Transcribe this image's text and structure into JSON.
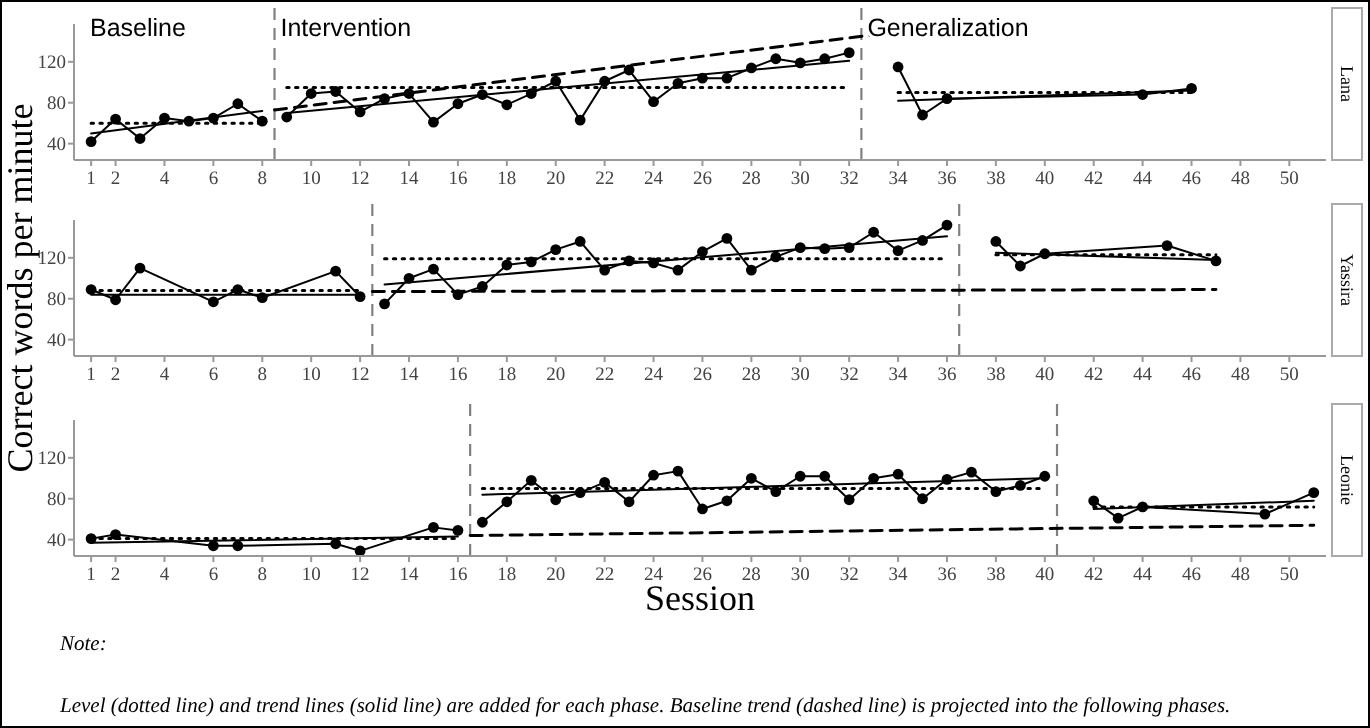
{
  "chart_data": [
    {
      "type": "line",
      "y2label": "Lana",
      "xlim": [
        0.3,
        51.5
      ],
      "ylim": [
        24,
        157
      ],
      "xticks": [
        1,
        2,
        4,
        6,
        8,
        10,
        12,
        14,
        16,
        18,
        20,
        22,
        24,
        26,
        28,
        30,
        32,
        34,
        36,
        38,
        40,
        42,
        44,
        46,
        48,
        50
      ],
      "yticks": [
        40,
        80,
        120
      ],
      "annotations": [
        "Baseline",
        "Intervention",
        "Generalization"
      ],
      "ref_lines": [
        {
          "axis": "x",
          "value": 8.5,
          "color": "#808080",
          "line_style": "dashed"
        },
        {
          "axis": "x",
          "value": 32.5,
          "color": "#808080",
          "line_style": "dashed"
        }
      ],
      "series": [
        {
          "type": "line",
          "x": [
            1,
            2,
            3,
            4,
            5,
            6,
            7,
            8
          ],
          "values": [
            42,
            64,
            45,
            65,
            62,
            65,
            79,
            62
          ],
          "color": "#000000",
          "marker": "circle",
          "line_style": "solid"
        },
        {
          "type": "line",
          "x": [
            9,
            10,
            11,
            12,
            13,
            14,
            15,
            16,
            17,
            18,
            19,
            20,
            21,
            22,
            23,
            24,
            25,
            26,
            27,
            28,
            29,
            30,
            31,
            32
          ],
          "values": [
            66,
            89,
            91,
            71,
            84,
            89,
            61,
            79,
            88,
            78,
            89,
            101,
            63,
            101,
            112,
            81,
            99,
            104,
            104,
            114,
            123,
            119,
            123,
            129
          ],
          "color": "#000000",
          "marker": "circle",
          "line_style": "solid"
        },
        {
          "type": "line",
          "x": [
            34,
            35,
            36,
            44,
            46
          ],
          "values": [
            115,
            68,
            84,
            88,
            94
          ],
          "color": "#000000",
          "marker": "circle",
          "line_style": "solid"
        },
        {
          "type": "line",
          "x": [
            1,
            8
          ],
          "values": [
            60,
            60
          ],
          "color": "#000000",
          "marker": "none",
          "line_style": "dotted"
        },
        {
          "type": "line",
          "x": [
            1,
            8
          ],
          "values": [
            50,
            72
          ],
          "color": "#000000",
          "marker": "none",
          "line_style": "solid"
        },
        {
          "type": "line",
          "x": [
            9,
            32
          ],
          "values": [
            95,
            95
          ],
          "color": "#000000",
          "marker": "none",
          "line_style": "dotted"
        },
        {
          "type": "line",
          "x": [
            9,
            32
          ],
          "values": [
            70,
            121
          ],
          "color": "#000000",
          "marker": "none",
          "line_style": "solid"
        },
        {
          "type": "line",
          "x": [
            34,
            46
          ],
          "values": [
            90,
            90
          ],
          "color": "#000000",
          "marker": "none",
          "line_style": "dotted"
        },
        {
          "type": "line",
          "x": [
            34,
            46
          ],
          "values": [
            82,
            92
          ],
          "color": "#000000",
          "marker": "none",
          "line_style": "solid"
        },
        {
          "type": "line",
          "x": [
            8.5,
            33.5
          ],
          "values": [
            73,
            148
          ],
          "color": "#000000",
          "marker": "none",
          "line_style": "dashed"
        }
      ]
    },
    {
      "type": "line",
      "y2label": "Yassira",
      "ylabel": "Correct words per minute",
      "xlim": [
        0.3,
        51.5
      ],
      "ylim": [
        24,
        157
      ],
      "xticks": [
        1,
        2,
        4,
        6,
        8,
        10,
        12,
        14,
        16,
        18,
        20,
        22,
        24,
        26,
        28,
        30,
        32,
        34,
        36,
        38,
        40,
        42,
        44,
        46,
        48,
        50
      ],
      "yticks": [
        40,
        80,
        120
      ],
      "ref_lines": [
        {
          "axis": "x",
          "value": 12.5,
          "color": "#808080",
          "line_style": "dashed"
        },
        {
          "axis": "x",
          "value": 36.5,
          "color": "#808080",
          "line_style": "dashed"
        }
      ],
      "series": [
        {
          "type": "line",
          "x": [
            1,
            2,
            3,
            6,
            7,
            8,
            11,
            12
          ],
          "values": [
            89,
            79,
            110,
            77,
            89,
            81,
            107,
            82
          ],
          "color": "#000000",
          "marker": "circle",
          "line_style": "solid"
        },
        {
          "type": "line",
          "x": [
            13,
            14,
            15,
            16,
            17,
            18,
            19,
            20,
            21,
            22,
            23,
            24,
            25,
            26,
            27,
            28,
            29,
            30,
            31,
            32,
            33,
            34,
            35,
            36
          ],
          "values": [
            75,
            100,
            109,
            84,
            92,
            113,
            116,
            128,
            136,
            108,
            117,
            115,
            108,
            126,
            139,
            108,
            121,
            130,
            129,
            130,
            145,
            127,
            137,
            152
          ],
          "color": "#000000",
          "marker": "circle",
          "line_style": "solid"
        },
        {
          "type": "line",
          "x": [
            38,
            39,
            40,
            45,
            47
          ],
          "values": [
            136,
            112,
            124,
            132,
            117
          ],
          "color": "#000000",
          "marker": "circle",
          "line_style": "solid"
        },
        {
          "type": "line",
          "x": [
            1,
            12
          ],
          "values": [
            88,
            88
          ],
          "color": "#000000",
          "marker": "none",
          "line_style": "dotted"
        },
        {
          "type": "line",
          "x": [
            1,
            12
          ],
          "values": [
            84,
            84
          ],
          "color": "#000000",
          "marker": "none",
          "line_style": "solid"
        },
        {
          "type": "line",
          "x": [
            13,
            36
          ],
          "values": [
            119,
            119
          ],
          "color": "#000000",
          "marker": "none",
          "line_style": "dotted"
        },
        {
          "type": "line",
          "x": [
            13,
            36
          ],
          "values": [
            94,
            141
          ],
          "color": "#000000",
          "marker": "none",
          "line_style": "solid"
        },
        {
          "type": "line",
          "x": [
            38,
            47
          ],
          "values": [
            123,
            123
          ],
          "color": "#000000",
          "marker": "none",
          "line_style": "dotted"
        },
        {
          "type": "line",
          "x": [
            38,
            47
          ],
          "values": [
            125,
            118
          ],
          "color": "#000000",
          "marker": "none",
          "line_style": "solid"
        },
        {
          "type": "line",
          "x": [
            12.5,
            47
          ],
          "values": [
            87,
            89
          ],
          "color": "#000000",
          "marker": "none",
          "line_style": "dashed"
        }
      ]
    },
    {
      "type": "line",
      "y2label": "Leonie",
      "xlabel": "Session",
      "xlim": [
        0.3,
        51.5
      ],
      "ylim": [
        24,
        157
      ],
      "xticks": [
        1,
        2,
        4,
        6,
        8,
        10,
        12,
        14,
        16,
        18,
        20,
        22,
        24,
        26,
        28,
        30,
        32,
        34,
        36,
        38,
        40,
        42,
        44,
        46,
        48,
        50
      ],
      "yticks": [
        40,
        80,
        120
      ],
      "ref_lines": [
        {
          "axis": "x",
          "value": 16.5,
          "color": "#808080",
          "line_style": "dashed"
        },
        {
          "axis": "x",
          "value": 40.5,
          "color": "#808080",
          "line_style": "dashed"
        }
      ],
      "series": [
        {
          "type": "line",
          "x": [
            1,
            2,
            6,
            7,
            11,
            12,
            15,
            16
          ],
          "values": [
            41,
            45,
            34,
            34,
            36,
            29,
            52,
            49
          ],
          "color": "#000000",
          "marker": "circle",
          "line_style": "solid"
        },
        {
          "type": "line",
          "x": [
            17,
            18,
            19,
            20,
            21,
            22,
            23,
            24,
            25,
            26,
            27,
            28,
            29,
            30,
            31,
            32,
            33,
            34,
            35,
            36,
            37,
            38,
            39,
            40
          ],
          "values": [
            57,
            77,
            98,
            79,
            86,
            96,
            77,
            103,
            107,
            70,
            78,
            100,
            87,
            102,
            102,
            79,
            100,
            104,
            80,
            99,
            106,
            87,
            93,
            102
          ],
          "color": "#000000",
          "marker": "circle",
          "line_style": "solid"
        },
        {
          "type": "line",
          "x": [
            42,
            43,
            44,
            49,
            51
          ],
          "values": [
            78,
            61,
            72,
            65,
            86
          ],
          "color": "#000000",
          "marker": "circle",
          "line_style": "solid"
        },
        {
          "type": "line",
          "x": [
            1,
            16
          ],
          "values": [
            41,
            41
          ],
          "color": "#000000",
          "marker": "none",
          "line_style": "dotted"
        },
        {
          "type": "line",
          "x": [
            1,
            16
          ],
          "values": [
            37,
            43
          ],
          "color": "#000000",
          "marker": "none",
          "line_style": "solid"
        },
        {
          "type": "line",
          "x": [
            17,
            40
          ],
          "values": [
            90,
            90
          ],
          "color": "#000000",
          "marker": "none",
          "line_style": "dotted"
        },
        {
          "type": "line",
          "x": [
            17,
            40
          ],
          "values": [
            84,
            100
          ],
          "color": "#000000",
          "marker": "none",
          "line_style": "solid"
        },
        {
          "type": "line",
          "x": [
            42,
            51
          ],
          "values": [
            72,
            72
          ],
          "color": "#000000",
          "marker": "none",
          "line_style": "dotted"
        },
        {
          "type": "line",
          "x": [
            42,
            51
          ],
          "values": [
            70,
            78
          ],
          "color": "#000000",
          "marker": "none",
          "line_style": "solid"
        },
        {
          "type": "line",
          "x": [
            16.5,
            51
          ],
          "values": [
            44,
            54
          ],
          "color": "#000000",
          "marker": "none",
          "line_style": "dashed"
        }
      ]
    },
    {
      "type": "other",
      "annotations": [
        "Note:",
        "Level (dotted line) and trend lines (solid line) are added for each phase. Baseline trend (dashed line) is projected into the following phases."
      ]
    }
  ]
}
